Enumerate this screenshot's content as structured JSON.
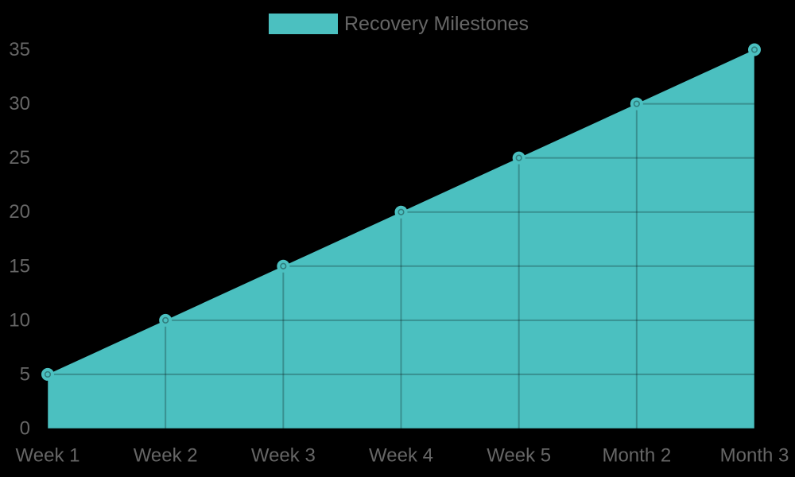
{
  "legend": {
    "label": "Recovery Milestones"
  },
  "colors": {
    "background": "#000000",
    "series": "#4BC0C0",
    "axis_text": "#666666",
    "grid": "rgba(0,0,0,0.25)",
    "marker_ring": "rgba(0,0,0,0.35)"
  },
  "chart_data": {
    "type": "area",
    "title": "Recovery Milestones",
    "categories": [
      "Week 1",
      "Week 2",
      "Week 3",
      "Week 4",
      "Week 5",
      "Month 2",
      "Month 3"
    ],
    "series": [
      {
        "name": "Recovery Milestones",
        "values": [
          5,
          10,
          15,
          20,
          25,
          30,
          35
        ]
      }
    ],
    "xlabel": "",
    "ylabel": "",
    "ylim": [
      0,
      35
    ],
    "yticks": [
      0,
      5,
      10,
      15,
      20,
      25,
      30,
      35
    ],
    "grid": true,
    "legend_position": "top",
    "marker": "circle"
  }
}
